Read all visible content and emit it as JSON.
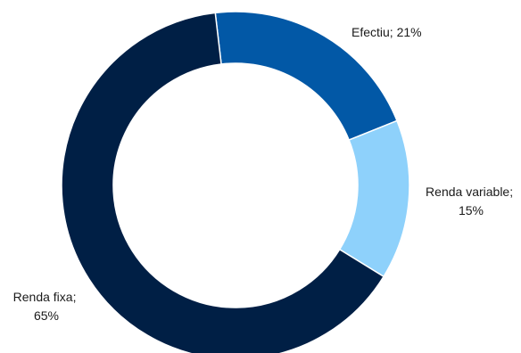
{
  "chart_data": {
    "type": "pie",
    "variant": "donut",
    "title": "",
    "start_angle_deg": -6.7,
    "direction": "clockwise",
    "slices": [
      {
        "label": "Efectiu; 21%",
        "value": 21,
        "color": "#0258A6"
      },
      {
        "label": "Renda variable; 15%",
        "value": 15,
        "color": "#8ED1FB"
      },
      {
        "label": "Renda fixa; 65%",
        "value": 65,
        "color": "#001F45"
      }
    ]
  }
}
